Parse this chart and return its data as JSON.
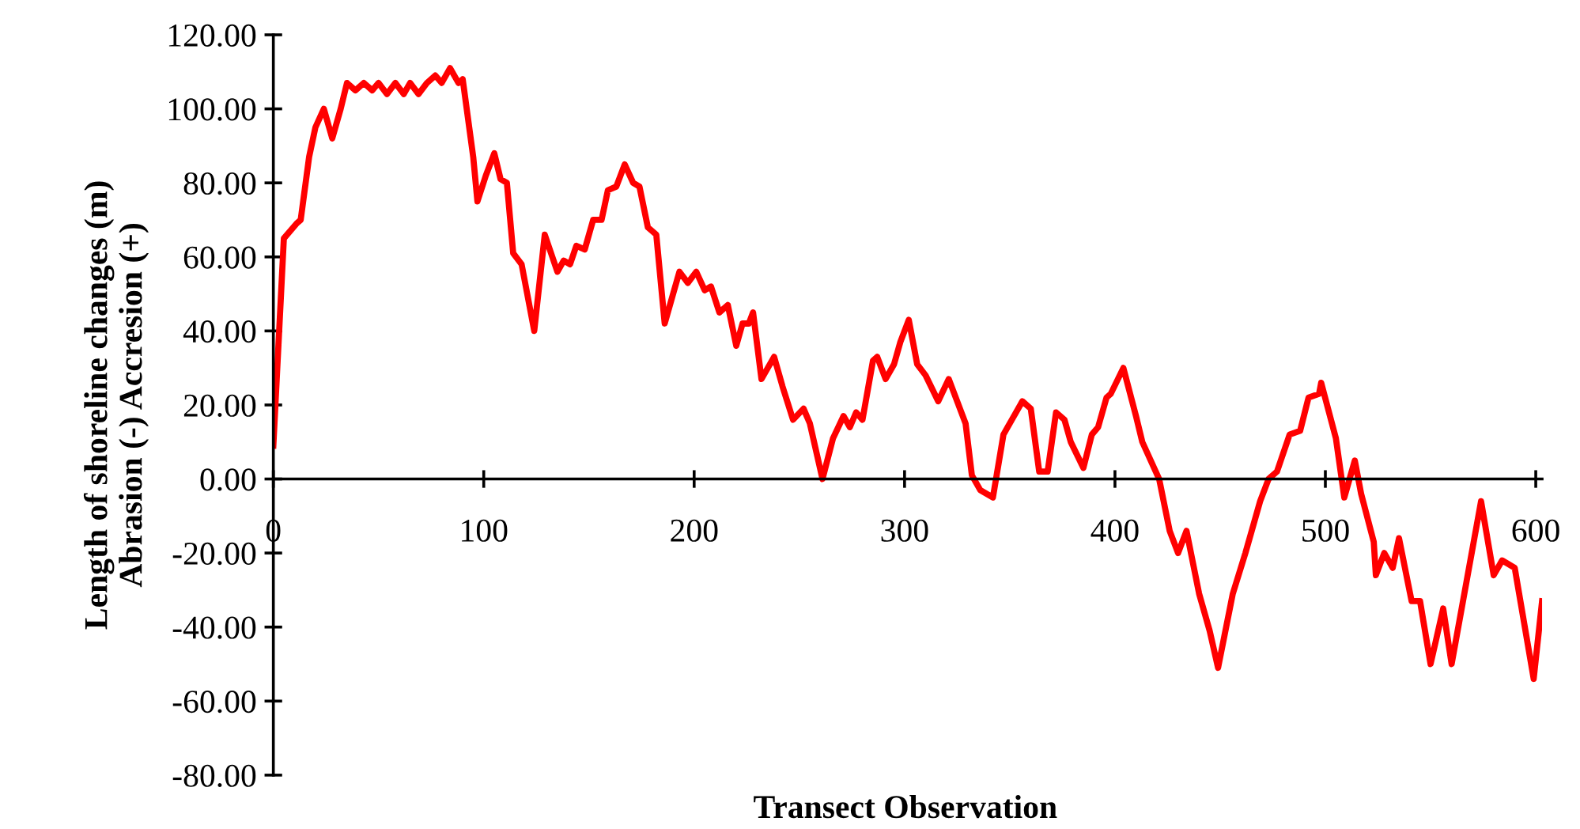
{
  "chart_data": {
    "type": "line",
    "xlabel": "Transect Observation",
    "ylabel": "Length of shoreline changes (m)\nAbrasion (-) Accresion (+)",
    "xlim": [
      0,
      603
    ],
    "xticks": [
      0,
      100,
      200,
      300,
      400,
      500,
      600
    ],
    "ylim": [
      -80,
      120
    ],
    "yticks": [
      {
        "value": -80,
        "label": "-80.00"
      },
      {
        "value": -60,
        "label": "-60.00"
      },
      {
        "value": -40,
        "label": "-40.00"
      },
      {
        "value": -20,
        "label": "-20.00"
      },
      {
        "value": 0,
        "label": "0.00"
      },
      {
        "value": 20,
        "label": "20.00"
      },
      {
        "value": 40,
        "label": "40.00"
      },
      {
        "value": 60,
        "label": "60.00"
      },
      {
        "value": 80,
        "label": "80.00"
      },
      {
        "value": 100,
        "label": "100.00"
      },
      {
        "value": 120,
        "label": "120.00"
      }
    ],
    "marker": "none",
    "line_style": "solid",
    "series": [
      {
        "color": "#ff0000",
        "x": [
          0,
          5,
          11,
          13,
          17,
          20,
          24,
          28,
          32,
          35,
          39,
          43,
          47,
          50,
          54,
          58,
          62,
          65,
          69,
          73,
          77,
          80,
          84,
          88,
          90,
          95,
          97,
          101,
          105,
          108,
          111,
          114,
          118,
          124,
          129,
          135,
          138,
          141,
          144,
          148,
          152,
          156,
          159,
          163,
          167,
          171,
          174,
          178,
          182,
          186,
          189,
          193,
          197,
          201,
          205,
          208,
          212,
          216,
          220,
          223,
          226,
          228,
          232,
          238,
          242,
          247,
          252,
          255,
          261,
          266,
          271,
          274,
          277,
          280,
          285,
          287,
          291,
          295,
          298,
          302,
          306,
          310,
          316,
          321,
          329,
          332,
          336,
          342,
          347,
          351,
          356,
          360,
          364,
          368,
          372,
          376,
          379,
          385,
          389,
          392,
          396,
          398,
          404,
          410,
          413,
          421,
          426,
          430,
          434,
          440,
          445,
          449,
          456,
          462,
          469,
          473,
          477,
          483,
          488,
          492,
          497,
          498,
          505,
          509,
          514,
          517,
          523,
          524,
          528,
          532,
          535,
          541,
          545,
          550,
          556,
          560,
          574,
          580,
          584,
          590,
          596,
          599,
          603
        ],
        "values": [
          9,
          65,
          69,
          70,
          87,
          95,
          100,
          92,
          100,
          107,
          105,
          107,
          105,
          107,
          104,
          107,
          104,
          107,
          104,
          107,
          109,
          107,
          111,
          107,
          108,
          87,
          75,
          82,
          88,
          81,
          80,
          61,
          58,
          40,
          66,
          56,
          59,
          58,
          63,
          62,
          70,
          70,
          78,
          79,
          85,
          80,
          79,
          68,
          66,
          42,
          48,
          56,
          53,
          56,
          51,
          52,
          45,
          47,
          36,
          42,
          42,
          45,
          27,
          33,
          25,
          16,
          19,
          15,
          0,
          11,
          17,
          14,
          18,
          16,
          32,
          33,
          27,
          31,
          37,
          43,
          31,
          28,
          21,
          27,
          15,
          1,
          -3,
          -5,
          12,
          16,
          21,
          19,
          2,
          2,
          18,
          16,
          10,
          3,
          12,
          14,
          22,
          23,
          30,
          17,
          10,
          0,
          -14,
          -20,
          -14,
          -31,
          -41,
          -51,
          -31,
          -20,
          -6,
          0,
          2,
          12,
          13,
          22,
          23,
          26,
          11,
          -5,
          5,
          -4,
          -17,
          -26,
          -20,
          -24,
          -16,
          -33,
          -33,
          -50,
          -35,
          -50,
          -6,
          -26,
          -22,
          -24,
          -44,
          -54,
          -33
        ]
      }
    ]
  }
}
